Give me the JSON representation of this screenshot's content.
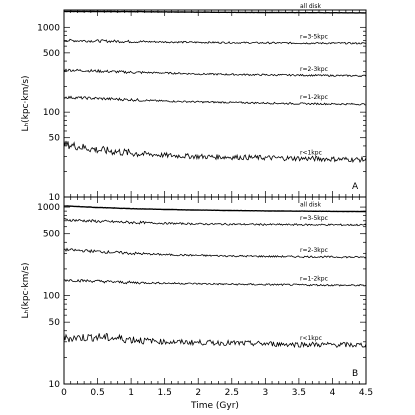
{
  "chart_data": {
    "type": "line",
    "xlabel": "Time (Gyr)",
    "xlim": [
      0,
      4.5
    ],
    "x_ticks": [
      0,
      0.5,
      1,
      1.5,
      2,
      2.5,
      3,
      3.5,
      4,
      4.5
    ],
    "x_tick_labels": [
      "0",
      "0.5",
      "1",
      "1.5",
      "2",
      "2.5",
      "3",
      "3.5",
      "4",
      "4.5"
    ],
    "y_scale": "log",
    "panels": [
      {
        "letter": "A",
        "ylabel": "Lₕ(kpc·km/s)",
        "ylim": [
          10,
          1600
        ],
        "y_tick_labels": [
          "10",
          "50",
          "100",
          "500",
          "1000"
        ],
        "y_ticks": [
          10,
          50,
          100,
          500,
          1000
        ],
        "series": [
          {
            "name": "all disk",
            "x": [
              0,
              0.5,
              1,
              1.5,
              2,
              2.5,
              3,
              3.5,
              4,
              4.5
            ],
            "values": [
              1540,
              1535,
              1530,
              1520,
              1510,
              1500,
              1495,
              1490,
              1485,
              1480
            ]
          },
          {
            "name": "r=3-5kpc",
            "x": [
              0,
              0.5,
              1,
              1.5,
              2,
              2.5,
              3,
              3.5,
              4,
              4.5
            ],
            "values": [
              700,
              690,
              680,
              672,
              665,
              660,
              655,
              652,
              650,
              648
            ]
          },
          {
            "name": "r=2-3kpc",
            "x": [
              0,
              0.5,
              1,
              1.5,
              2,
              2.5,
              3,
              3.5,
              4,
              4.5
            ],
            "values": [
              315,
              305,
              295,
              290,
              282,
              278,
              275,
              273,
              270,
              268
            ]
          },
          {
            "name": "r=1-2kpc",
            "x": [
              0,
              0.5,
              1,
              1.5,
              2,
              2.5,
              3,
              3.5,
              4,
              4.5
            ],
            "values": [
              150,
              145,
              140,
              135,
              132,
              130,
              128,
              126,
              125,
              124
            ]
          },
          {
            "name": "r<1kpc",
            "x": [
              0,
              0.5,
              1,
              1.5,
              2,
              2.5,
              3,
              3.5,
              4,
              4.5
            ],
            "values": [
              42,
              36,
              33,
              31,
              30,
              29.5,
              29,
              28.5,
              28,
              27.5
            ]
          }
        ]
      },
      {
        "letter": "B",
        "ylabel": "Lₕ(kpc·km/s)",
        "ylim": [
          10,
          1300
        ],
        "y_tick_labels": [
          "10",
          "50",
          "100",
          "500",
          "1000"
        ],
        "y_ticks": [
          10,
          50,
          100,
          500,
          1000
        ],
        "series": [
          {
            "name": "all disk",
            "x": [
              0,
              0.5,
              1,
              1.5,
              2,
              2.5,
              3,
              3.5,
              4,
              4.5
            ],
            "values": [
              1030,
              990,
              960,
              940,
              925,
              915,
              905,
              900,
              895,
              890
            ]
          },
          {
            "name": "r=3-5kpc",
            "x": [
              0,
              0.5,
              1,
              1.5,
              2,
              2.5,
              3,
              3.5,
              4,
              4.5
            ],
            "values": [
              720,
              690,
              670,
              655,
              645,
              640,
              635,
              632,
              630,
              628
            ]
          },
          {
            "name": "r=2-3kpc",
            "x": [
              0,
              0.5,
              1,
              1.5,
              2,
              2.5,
              3,
              3.5,
              4,
              4.5
            ],
            "values": [
              330,
              315,
              300,
              290,
              284,
              280,
              277,
              275,
              273,
              271
            ]
          },
          {
            "name": "r=1-2kpc",
            "x": [
              0,
              0.5,
              1,
              1.5,
              2,
              2.5,
              3,
              3.5,
              4,
              4.5
            ],
            "values": [
              150,
              145,
              140,
              138,
              136,
              134,
              133,
              132,
              131,
              130
            ]
          },
          {
            "name": "r<1kpc",
            "x": [
              0,
              0.5,
              1,
              1.5,
              2,
              2.5,
              3,
              3.5,
              4,
              4.5
            ],
            "values": [
              33,
              34,
              32,
              30,
              29.5,
              29,
              28.5,
              28,
              27.8,
              27.5
            ]
          }
        ]
      }
    ]
  }
}
